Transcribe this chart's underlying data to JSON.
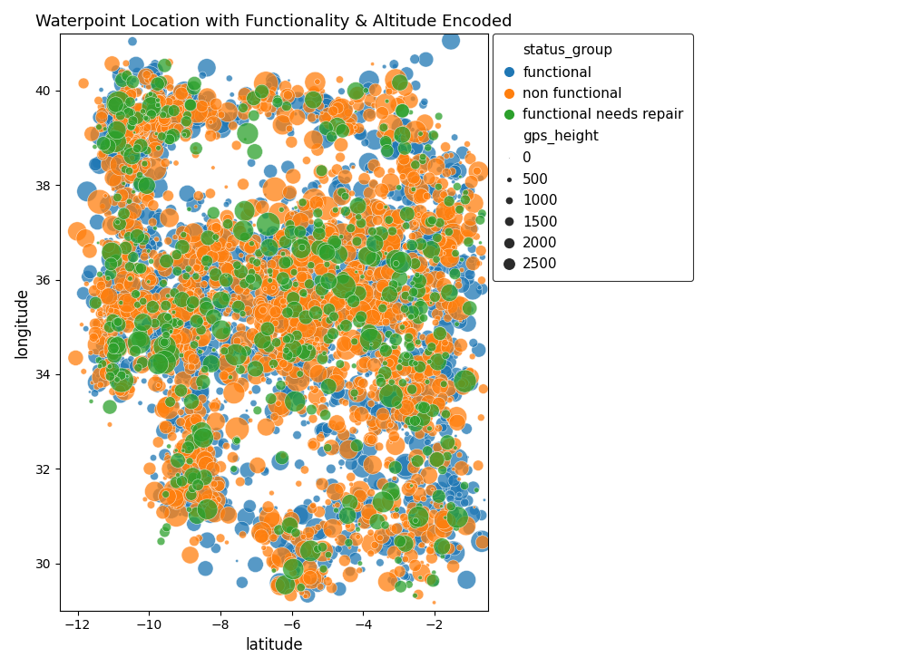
{
  "title": "Waterpoint Location with Functionality & Altitude Encoded",
  "xlabel": "latitude",
  "ylabel": "longitude",
  "xlim": [
    -12.5,
    -0.5
  ],
  "ylim": [
    29.0,
    41.2
  ],
  "xticks": [
    -12,
    -10,
    -8,
    -6,
    -4,
    -2
  ],
  "yticks": [
    30,
    32,
    34,
    36,
    38,
    40
  ],
  "status_colors": {
    "functional": "#1f77b4",
    "non functional": "#ff7f0e",
    "functional needs repair": "#2ca02c"
  },
  "status_labels": [
    "functional",
    "non functional",
    "functional needs repair"
  ],
  "size_legend": {
    "labels": [
      "0",
      "500",
      "1000",
      "1500",
      "2000",
      "2500"
    ],
    "values": [
      0,
      500,
      1000,
      1500,
      2000,
      2500
    ]
  },
  "n_points": 4000,
  "seed": 42,
  "min_size": 4,
  "max_size": 350
}
